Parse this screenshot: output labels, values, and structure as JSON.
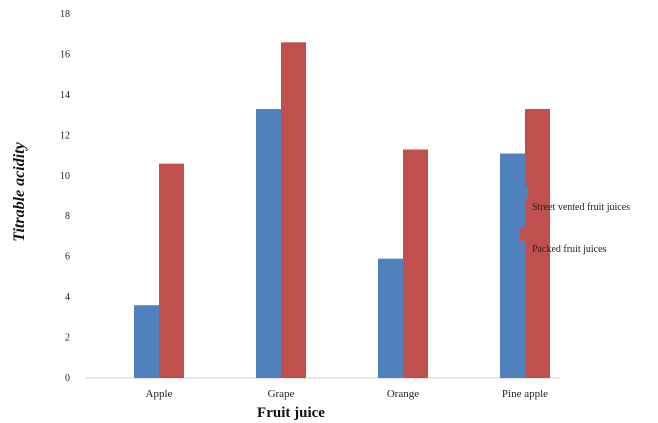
{
  "chart_data": {
    "type": "bar",
    "title": "",
    "xlabel": "Fruit juice",
    "ylabel": "Titrable acidity",
    "categories": [
      "Apple",
      "Grape",
      "Orange",
      "Pine apple"
    ],
    "series": [
      {
        "name": "Street vented fruit juices",
        "values": [
          3.6,
          13.3,
          5.9,
          11.1
        ],
        "color": "#4f81bd"
      },
      {
        "name": "Packed fruit juices",
        "values": [
          10.6,
          16.6,
          11.3,
          13.3
        ],
        "color": "#c0504d"
      }
    ],
    "y_ticks": [
      "0",
      "2",
      "4",
      "6",
      "8",
      "10",
      "12",
      "14",
      "16",
      "18"
    ],
    "ylim": [
      0,
      18
    ],
    "grid": false,
    "legend_position": "right"
  }
}
